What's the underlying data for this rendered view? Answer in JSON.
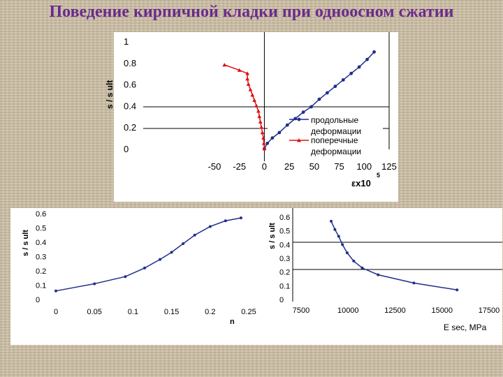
{
  "slide": {
    "title": "Поведение кирпичной кладки при одноосном сжатии"
  },
  "colors": {
    "title": "#6b2a8c",
    "longitudinal": "#1f2e8a",
    "transverse": "#e01010",
    "frame": "#000000"
  },
  "chart_data": [
    {
      "type": "line",
      "ylabel": "s / s ult",
      "xlabel": "εx10",
      "xlabel_sup": "5",
      "xlim": [
        -50,
        125
      ],
      "ylim": [
        0,
        1
      ],
      "x_ticks": [
        -50,
        -25,
        0,
        25,
        50,
        75,
        100,
        125
      ],
      "y_ticks": [
        0,
        0.2,
        0.4,
        0.6,
        0.8,
        1
      ],
      "legend": {
        "placement": "right",
        "entries": [
          "продольные деформации",
          "поперечные деформации"
        ]
      },
      "series": [
        {
          "name": "продольные деформации",
          "color": "#1f2e8a",
          "marker": "circle",
          "points": [
            [
              0,
              0
            ],
            [
              3,
              0.05
            ],
            [
              8,
              0.1
            ],
            [
              15,
              0.15
            ],
            [
              23,
              0.22
            ],
            [
              31,
              0.28
            ],
            [
              39,
              0.34
            ],
            [
              47,
              0.39
            ],
            [
              55,
              0.46
            ],
            [
              63,
              0.52
            ],
            [
              71,
              0.58
            ],
            [
              79,
              0.64
            ],
            [
              87,
              0.7
            ],
            [
              95,
              0.76
            ],
            [
              103,
              0.83
            ],
            [
              110,
              0.9
            ]
          ]
        },
        {
          "name": "поперечные деформации",
          "color": "#e01010",
          "marker": "triangle",
          "points": [
            [
              0,
              0
            ],
            [
              -0.5,
              0.05
            ],
            [
              -1,
              0.1
            ],
            [
              -2,
              0.15
            ],
            [
              -3,
              0.2
            ],
            [
              -4,
              0.25
            ],
            [
              -5,
              0.3
            ],
            [
              -6,
              0.35
            ],
            [
              -8,
              0.4
            ],
            [
              -10,
              0.45
            ],
            [
              -12,
              0.5
            ],
            [
              -14,
              0.55
            ],
            [
              -16,
              0.6
            ],
            [
              -17,
              0.65
            ],
            [
              -17,
              0.7
            ],
            [
              -25,
              0.73
            ],
            [
              -40,
              0.78
            ]
          ]
        }
      ]
    },
    {
      "type": "line",
      "ylabel": "s / s ult",
      "xlabel": "n",
      "xlim": [
        0,
        0.25
      ],
      "ylim": [
        0,
        0.6
      ],
      "x_ticks": [
        "0",
        "0.05",
        "0.1",
        "0.15",
        "0.2",
        "0.25"
      ],
      "y_ticks": [
        "0",
        "0.1",
        "0.2",
        "0.3",
        "0.4",
        "0.5",
        "0.6"
      ],
      "series": [
        {
          "color": "#1f2e8a",
          "marker": "circle",
          "points": [
            [
              0,
              0.06
            ],
            [
              0.05,
              0.11
            ],
            [
              0.09,
              0.16
            ],
            [
              0.115,
              0.22
            ],
            [
              0.135,
              0.28
            ],
            [
              0.15,
              0.33
            ],
            [
              0.165,
              0.39
            ],
            [
              0.18,
              0.45
            ],
            [
              0.2,
              0.51
            ],
            [
              0.22,
              0.55
            ],
            [
              0.24,
              0.57
            ]
          ]
        }
      ]
    },
    {
      "type": "line",
      "ylabel": "s / s ult",
      "xlabel": "E sec, MPa",
      "xlim": [
        7500,
        17500
      ],
      "ylim": [
        0,
        0.6
      ],
      "x_ticks": [
        "7500",
        "10000",
        "12500",
        "15000",
        "17500"
      ],
      "y_ticks": [
        "0",
        "0.1",
        "0.2",
        "0.3",
        "0.4",
        "0.5",
        "0.6"
      ],
      "series": [
        {
          "color": "#1f2e8a",
          "marker": "circle",
          "points": [
            [
              9100,
              0.57
            ],
            [
              9300,
              0.51
            ],
            [
              9500,
              0.46
            ],
            [
              9700,
              0.4
            ],
            [
              9950,
              0.34
            ],
            [
              10300,
              0.28
            ],
            [
              10750,
              0.23
            ],
            [
              11600,
              0.18
            ],
            [
              13500,
              0.12
            ],
            [
              15800,
              0.07
            ]
          ]
        }
      ]
    }
  ]
}
